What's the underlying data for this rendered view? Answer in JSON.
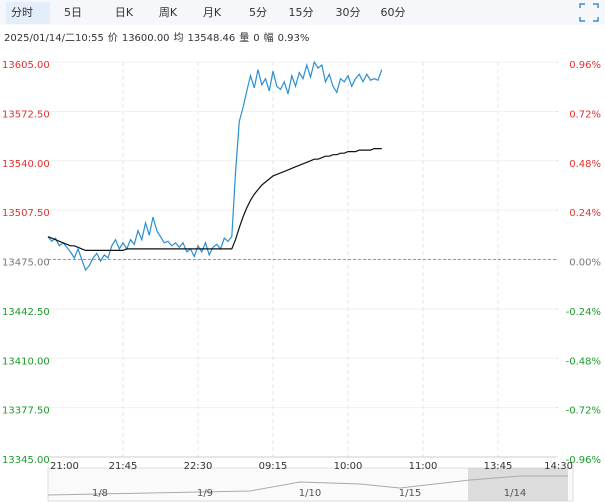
{
  "tabs": [
    "分时",
    "5日",
    "日K",
    "周K",
    "月K",
    "5分",
    "15分",
    "30分",
    "60分"
  ],
  "info": [
    "2025/01/14/二10:55",
    "价",
    "13600.00",
    "均",
    "13548.46",
    "量",
    "0",
    "幅",
    "0.93%"
  ],
  "navigator": {
    "labels": [
      "1/8",
      "1/9",
      "1/10",
      "1/15",
      "1/14"
    ]
  },
  "chart_data": {
    "type": "line",
    "x": [
      0,
      0.05,
      0.1,
      0.15,
      0.2,
      0.25,
      0.3,
      0.35,
      0.4,
      0.45,
      0.5,
      0.55,
      0.6,
      0.65,
      0.7,
      0.75,
      0.8,
      0.85,
      0.9,
      0.95,
      1,
      1.05,
      1.1,
      1.15,
      1.2,
      1.25,
      1.3,
      1.35,
      1.4,
      1.45,
      1.5,
      1.55,
      1.6,
      1.65,
      1.7,
      1.75,
      1.8,
      1.85,
      1.9,
      1.95,
      2,
      2.05,
      2.1,
      2.15,
      2.2,
      2.25,
      2.3,
      2.35,
      2.4,
      2.45,
      2.5,
      2.55,
      2.6,
      2.65,
      2.7,
      2.75,
      2.8,
      2.85,
      2.9,
      2.95,
      3,
      3.05,
      3.1,
      3.15,
      3.2,
      3.25,
      3.3,
      3.35,
      3.4,
      3.45,
      3.5,
      3.55,
      3.6,
      3.65,
      3.7,
      3.75,
      3.8,
      3.85,
      3.9,
      3.95,
      4,
      4.05,
      4.1,
      4.15,
      4.2,
      4.25,
      4.3,
      4.35,
      4.4,
      4.45
    ],
    "series": [
      {
        "name": "价",
        "color": "#2a8fd0",
        "values": [
          13490,
          13487,
          13489,
          13484,
          13486,
          13483,
          13480,
          13476,
          13482,
          13475,
          13468,
          13471,
          13476,
          13479,
          13474,
          13478,
          13476,
          13484,
          13488,
          13482,
          13486,
          13482,
          13488,
          13485,
          13494,
          13488,
          13499,
          13491,
          13503,
          13494,
          13490,
          13486,
          13487,
          13484,
          13486,
          13483,
          13486,
          13480,
          13482,
          13477,
          13484,
          13480,
          13486,
          13478,
          13483,
          13485,
          13482,
          13489,
          13487,
          13490,
          13532,
          13566,
          13575,
          13586,
          13596,
          13588,
          13600,
          13590,
          13594,
          13586,
          13599,
          13589,
          13587,
          13592,
          13584,
          13596,
          13589,
          13598,
          13594,
          13603,
          13595,
          13605,
          13601,
          13603,
          13592,
          13597,
          13589,
          13585,
          13594,
          13592,
          13596,
          13589,
          13594,
          13597,
          13592,
          13597,
          13593,
          13594,
          13593,
          13600
        ]
      },
      {
        "name": "均",
        "color": "#111111",
        "values": [
          13490,
          13489,
          13488,
          13487,
          13486,
          13485,
          13484,
          13484,
          13483,
          13482,
          13481,
          13481,
          13481,
          13481,
          13481,
          13481,
          13481,
          13481,
          13481,
          13481,
          13481,
          13482,
          13482,
          13482,
          13482,
          13482,
          13482,
          13482,
          13482,
          13482,
          13482,
          13482,
          13482,
          13482,
          13482,
          13482,
          13482,
          13482,
          13482,
          13482,
          13482,
          13482,
          13482,
          13482,
          13482,
          13482,
          13482,
          13482,
          13482,
          13482,
          13488,
          13496,
          13503,
          13509,
          13514,
          13518,
          13521,
          13524,
          13526,
          13528,
          13530,
          13531,
          13532,
          13533,
          13534,
          13535,
          13536,
          13537,
          13538,
          13539,
          13540,
          13541,
          13541,
          13542,
          13543,
          13543,
          13544,
          13544,
          13545,
          13545,
          13546,
          13546,
          13546,
          13547,
          13547,
          13547,
          13547,
          13548,
          13548,
          13548
        ]
      }
    ],
    "xlim": [
      0,
      7
    ],
    "xticks": [
      {
        "value": 0,
        "label": "21:00"
      },
      {
        "value": 1,
        "label": "21:45"
      },
      {
        "value": 2,
        "label": "22:30"
      },
      {
        "value": 3,
        "label": "09:15"
      },
      {
        "value": 4,
        "label": "10:00"
      },
      {
        "value": 5,
        "label": "11:00"
      },
      {
        "value": 6,
        "label": "13:45"
      },
      {
        "value": 7,
        "label": "14:30"
      }
    ],
    "ylim": [
      13345,
      13605
    ],
    "yticks": [
      {
        "value": 13345,
        "label": "13345.00"
      },
      {
        "value": 13377.5,
        "label": "13377.50"
      },
      {
        "value": 13410,
        "label": "13410.00"
      },
      {
        "value": 13442.5,
        "label": "13442.50"
      },
      {
        "value": 13475,
        "label": "13475.00"
      },
      {
        "value": 13507.5,
        "label": "13507.50"
      },
      {
        "value": 13540,
        "label": "13540.00"
      },
      {
        "value": 13572.5,
        "label": "13572.50"
      },
      {
        "value": 13605,
        "label": "13605.00"
      }
    ],
    "y2lim": [
      -0.96,
      0.96
    ],
    "y2ticks": [
      {
        "value": -0.96,
        "label": "-0.96%"
      },
      {
        "value": -0.72,
        "label": "-0.72%"
      },
      {
        "value": -0.48,
        "label": "-0.48%"
      },
      {
        "value": -0.24,
        "label": "-0.24%"
      },
      {
        "value": 0,
        "label": "0.00%"
      },
      {
        "value": 0.24,
        "label": "0.24%"
      },
      {
        "value": 0.48,
        "label": "0.48%"
      },
      {
        "value": 0.72,
        "label": "0.72%"
      },
      {
        "value": 0.96,
        "label": "0.96%"
      }
    ],
    "reference": 13475
  }
}
